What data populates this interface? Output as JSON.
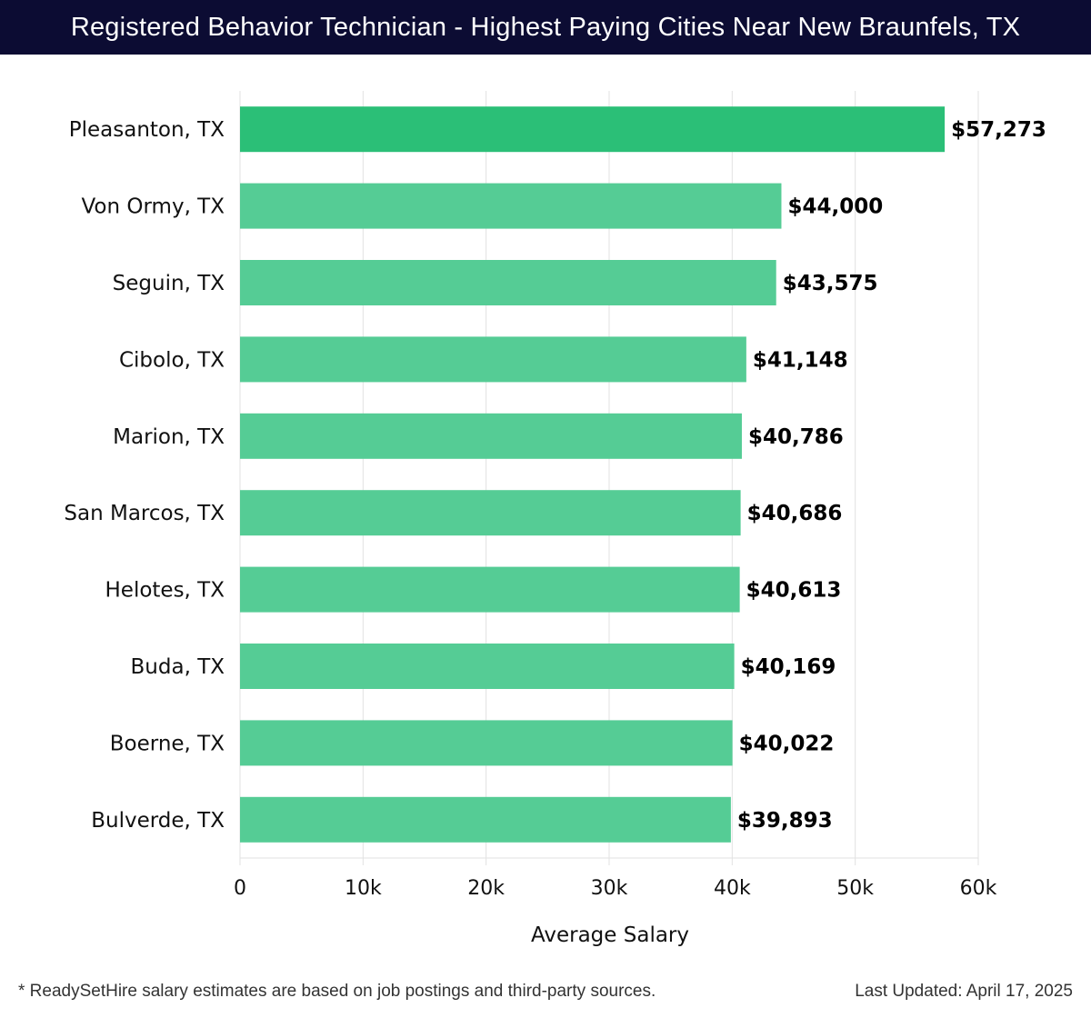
{
  "header": {
    "title": "Registered Behavior Technician - Highest Paying Cities Near New Braunfels, TX"
  },
  "chart_data": {
    "type": "bar",
    "orientation": "horizontal",
    "title": "Registered Behavior Technician - Highest Paying Cities Near New Braunfels, TX",
    "xlabel": "Average Salary",
    "ylabel": "",
    "xlim": [
      0,
      60000
    ],
    "xticks": [
      0,
      10000,
      20000,
      30000,
      40000,
      50000,
      60000
    ],
    "xtick_labels": [
      "0",
      "10k",
      "20k",
      "30k",
      "40k",
      "50k",
      "60k"
    ],
    "grid": true,
    "categories": [
      "Pleasanton, TX",
      "Von Ormy, TX",
      "Seguin, TX",
      "Cibolo, TX",
      "Marion, TX",
      "San Marcos, TX",
      "Helotes, TX",
      "Buda, TX",
      "Boerne, TX",
      "Bulverde, TX"
    ],
    "values": [
      57273,
      44000,
      43575,
      41148,
      40786,
      40686,
      40613,
      40169,
      40022,
      39893
    ],
    "value_labels": [
      "$57,273",
      "$44,000",
      "$43,575",
      "$41,148",
      "$40,786",
      "$40,686",
      "$40,613",
      "$40,169",
      "$40,022",
      "$39,893"
    ],
    "colors": {
      "top_bar": "#2bbf77",
      "bar": "#55cc95",
      "grid": "#e2e2e2"
    }
  },
  "footer": {
    "note": "* ReadySetHire salary estimates are based on job postings and third-party sources.",
    "updated": "Last Updated: April 17, 2025"
  }
}
